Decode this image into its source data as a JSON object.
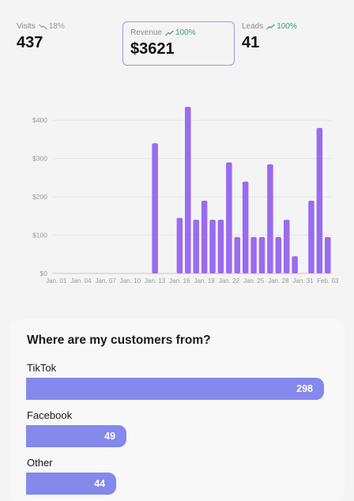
{
  "stats": {
    "visits": {
      "label": "Visits",
      "value": "437",
      "delta": "18%",
      "trend": "down"
    },
    "revenue": {
      "label": "Revenue",
      "value": "$3621",
      "delta": "100%",
      "trend": "up"
    },
    "leads": {
      "label": "Leads",
      "value": "41",
      "delta": "100%",
      "trend": "up"
    }
  },
  "chart_data": {
    "type": "bar",
    "title": "",
    "xlabel": "",
    "ylabel": "",
    "ylim": [
      0,
      450
    ],
    "y_ticks": [
      "$0",
      "$100",
      "$200",
      "$300",
      "$400"
    ],
    "x_ticks": [
      "Jan. 01",
      "Jan. 04",
      "Jan. 07",
      "Jan. 10",
      "Jan. 13",
      "Jan. 16",
      "Jan. 19",
      "Jan. 22",
      "Jan. 25",
      "Jan. 28",
      "Jan. 31",
      "Feb. 03"
    ],
    "categories": [
      "Jan. 01",
      "Jan. 02",
      "Jan. 03",
      "Jan. 04",
      "Jan. 05",
      "Jan. 06",
      "Jan. 07",
      "Jan. 08",
      "Jan. 09",
      "Jan. 10",
      "Jan. 11",
      "Jan. 12",
      "Jan. 13",
      "Jan. 14",
      "Jan. 15",
      "Jan. 16",
      "Jan. 17",
      "Jan. 18",
      "Jan. 19",
      "Jan. 20",
      "Jan. 21",
      "Jan. 22",
      "Jan. 23",
      "Jan. 24",
      "Jan. 25",
      "Jan. 26",
      "Jan. 27",
      "Jan. 28",
      "Jan. 29",
      "Jan. 30",
      "Jan. 31",
      "Feb. 01",
      "Feb. 02",
      "Feb. 03"
    ],
    "values": [
      0,
      0,
      0,
      0,
      0,
      0,
      0,
      0,
      0,
      0,
      0,
      0,
      340,
      0,
      0,
      145,
      435,
      140,
      190,
      140,
      140,
      290,
      95,
      240,
      95,
      95,
      285,
      95,
      140,
      45,
      0,
      190,
      380,
      95
    ],
    "bar_color": "#9b6bef",
    "grid": true
  },
  "sources": {
    "title": "Where are my customers from?",
    "items": [
      {
        "label": "TikTok",
        "value": 298
      },
      {
        "label": "Facebook",
        "value": 49
      },
      {
        "label": "Other",
        "value": 44
      }
    ],
    "bar_color": "#8489eb"
  }
}
